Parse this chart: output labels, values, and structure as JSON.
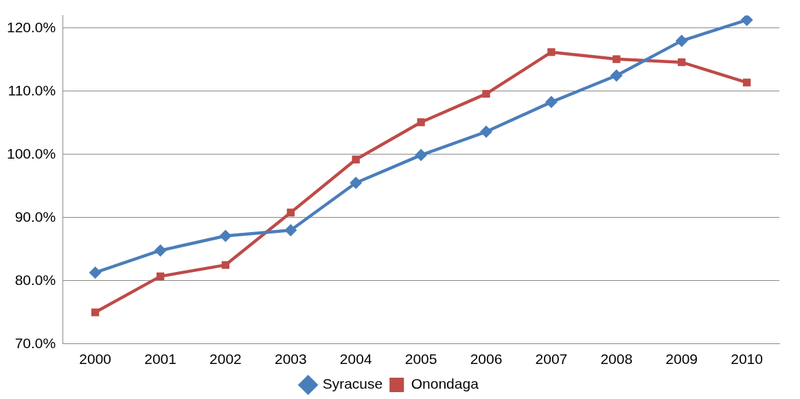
{
  "chart_data": {
    "type": "line",
    "categories": [
      "2000",
      "2001",
      "2002",
      "2003",
      "2004",
      "2005",
      "2006",
      "2007",
      "2008",
      "2009",
      "2010"
    ],
    "series": [
      {
        "name": "Syracuse",
        "color": "#4a7ebb",
        "marker": "diamond",
        "values": [
          81.3,
          84.8,
          87.1,
          88.0,
          95.5,
          99.9,
          103.6,
          108.3,
          112.5,
          118.0,
          121.3
        ]
      },
      {
        "name": "Onondaga",
        "color": "#be4b48",
        "marker": "square",
        "values": [
          75.0,
          80.7,
          82.5,
          90.8,
          99.2,
          105.1,
          109.6,
          116.2,
          115.1,
          114.6,
          111.4
        ]
      }
    ],
    "ylim": [
      70,
      122
    ],
    "yticks": [
      {
        "value": 70,
        "label": "70.0%"
      },
      {
        "value": 80,
        "label": "80.0%"
      },
      {
        "value": 90,
        "label": "90.0%"
      },
      {
        "value": 100,
        "label": "100.0%"
      },
      {
        "value": 110,
        "label": "110.0%"
      },
      {
        "value": 120,
        "label": "120.0%"
      }
    ],
    "grid": "y",
    "legend": "bottom",
    "line_style": "solid"
  }
}
